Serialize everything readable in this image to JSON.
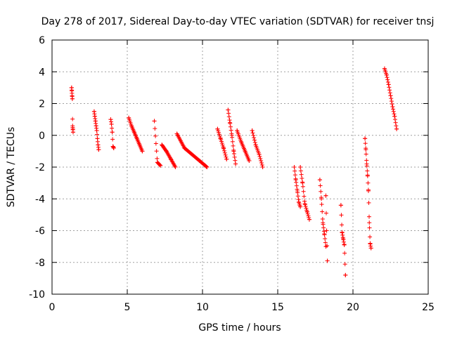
{
  "chart_data": {
    "type": "scatter",
    "title": "Day 278 of 2017, Sidereal Day-to-day VTEC variation (SDTVAR) for receiver tnsj",
    "xlabel": "GPS time / hours",
    "ylabel": "SDTVAR / TECUs",
    "xlim": [
      0,
      25
    ],
    "ylim": [
      -10,
      6
    ],
    "xticks": [
      "0",
      "5",
      "10",
      "15",
      "20",
      "25"
    ],
    "yticks": [
      "-10",
      "-8",
      "-6",
      "-4",
      "-2",
      "0",
      "2",
      "4",
      "6"
    ],
    "grid": true,
    "marker": "+",
    "color": "#ff0000",
    "clusters": [
      {
        "x_start": 1.3,
        "x_end": 1.4,
        "y_values": [
          3.0,
          2.8,
          2.5,
          2.3,
          0.6,
          0.4,
          0.2
        ]
      },
      {
        "x_start": 2.8,
        "x_end": 3.1,
        "y_values": [
          1.5,
          1.2,
          0.9,
          0.6,
          0.3,
          -0.2,
          -0.6,
          -0.9
        ]
      },
      {
        "x_start": 3.9,
        "x_end": 4.1,
        "y_values": [
          1.0,
          0.7,
          0.2,
          -0.7,
          -0.8
        ]
      },
      {
        "x_start": 5.1,
        "x_end": 6.0,
        "y_values": [
          1.1,
          0.6,
          0.2,
          -0.2,
          -0.6,
          -1.0
        ]
      },
      {
        "x_start": 6.8,
        "x_end": 7.2,
        "y_values": [
          0.9,
          -1.7,
          -1.9
        ]
      },
      {
        "x_start": 7.3,
        "x_end": 8.2,
        "y_values": [
          -0.6,
          -1.0,
          -1.5,
          -2.0
        ]
      },
      {
        "x_start": 8.3,
        "x_end": 10.3,
        "y_values": [
          0.1,
          -0.8,
          -1.2,
          -1.6,
          -2.0
        ]
      },
      {
        "x_start": 11.0,
        "x_end": 11.6,
        "y_values": [
          0.4,
          -0.2,
          -0.8,
          -1.5
        ]
      },
      {
        "x_start": 11.7,
        "x_end": 12.2,
        "y_values": [
          1.6,
          0.8,
          0.0,
          -1.0,
          -1.8
        ]
      },
      {
        "x_start": 12.3,
        "x_end": 13.1,
        "y_values": [
          0.3,
          -0.4,
          -1.0,
          -1.6
        ]
      },
      {
        "x_start": 13.3,
        "x_end": 14.0,
        "y_values": [
          0.3,
          -0.6,
          -1.2,
          -2.0
        ]
      },
      {
        "x_start": 16.1,
        "x_end": 16.5,
        "y_values": [
          -2.0,
          -2.8,
          -3.5,
          -4.2,
          -4.5
        ]
      },
      {
        "x_start": 16.5,
        "x_end": 17.1,
        "y_values": [
          -2.0,
          -3.0,
          -4.3,
          -4.8,
          -5.3
        ]
      },
      {
        "x_start": 17.8,
        "x_end": 18.2,
        "y_values": [
          -2.8,
          -4.0,
          -5.5,
          -6.2,
          -7.0
        ]
      },
      {
        "x_start": 18.2,
        "x_end": 18.3,
        "y_values": [
          -3.8,
          -6.0,
          -7.9
        ]
      },
      {
        "x_start": 19.2,
        "x_end": 19.5,
        "y_values": [
          -4.4,
          -6.1,
          -6.5,
          -6.9,
          -8.8
        ]
      },
      {
        "x_start": 20.8,
        "x_end": 21.2,
        "y_values": [
          -0.2,
          -0.9,
          -1.8,
          -2.5,
          -3.5,
          -5.5,
          -6.8,
          -7.1
        ]
      },
      {
        "x_start": 22.1,
        "x_end": 22.9,
        "y_values": [
          4.2,
          3.8,
          3.2,
          2.5,
          1.8,
          1.2,
          0.4
        ]
      }
    ]
  }
}
